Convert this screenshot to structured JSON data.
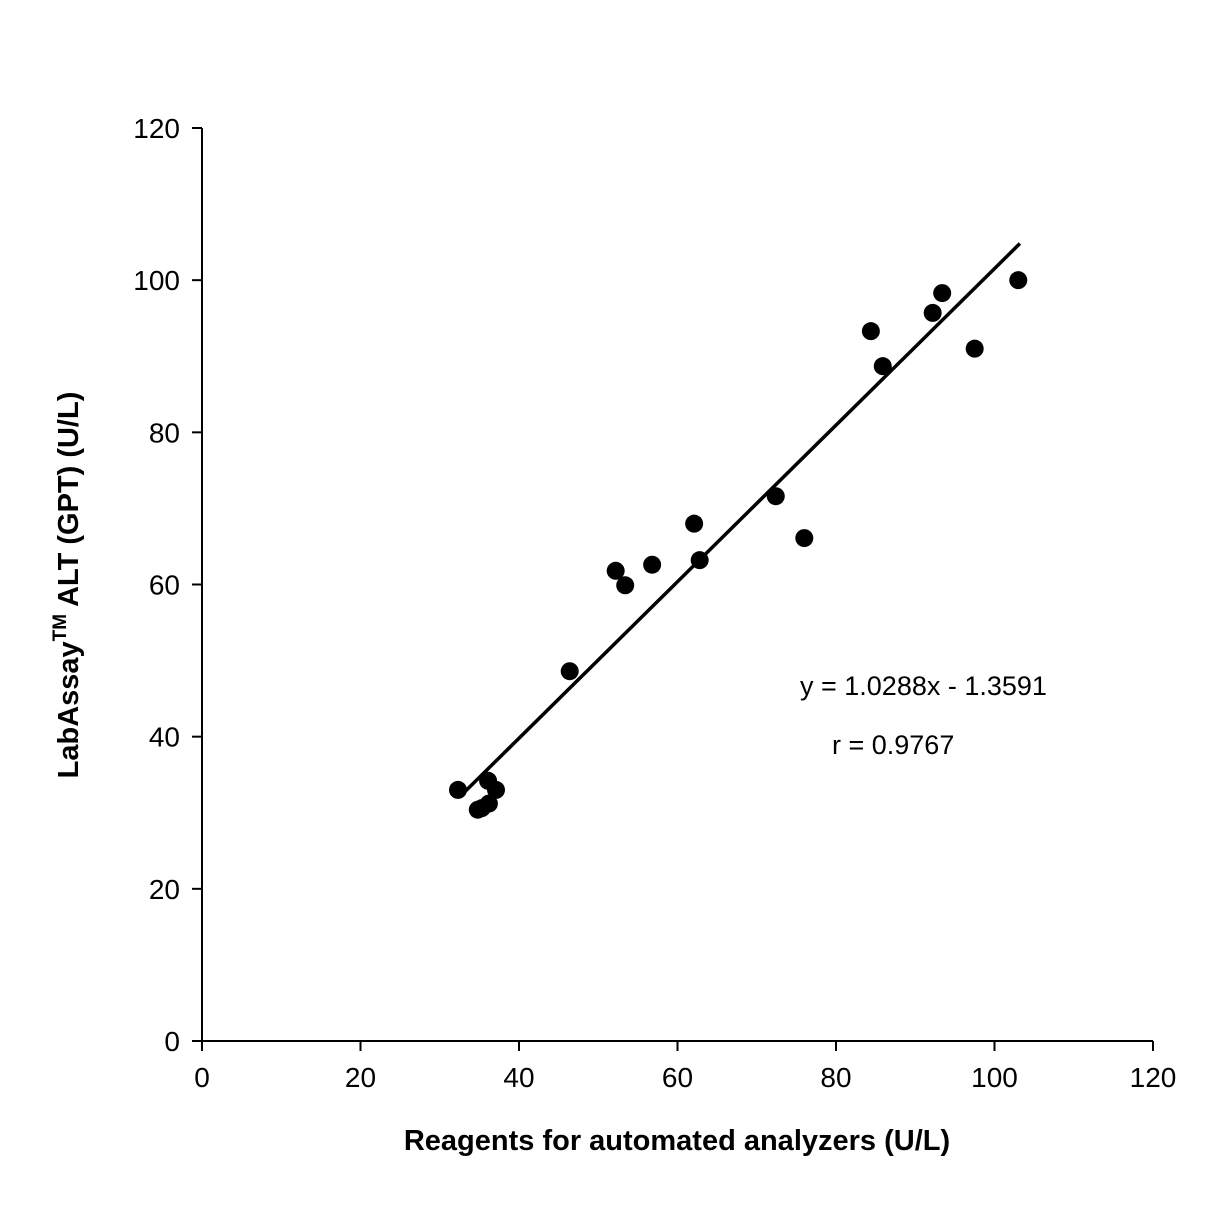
{
  "chart_data": {
    "type": "scatter",
    "title": "",
    "xlabel": "Reagents for automated analyzers (U/L)",
    "ylabel_main": "LabAssay",
    "ylabel_sup": "TM",
    "ylabel_rest": " ALT (GPT) (U/L)",
    "xlim": [
      0,
      120
    ],
    "ylim": [
      0,
      120
    ],
    "xticks": [
      0,
      20,
      40,
      60,
      80,
      100,
      120
    ],
    "yticks": [
      0,
      20,
      40,
      60,
      80,
      100,
      120
    ],
    "grid": false,
    "points": [
      {
        "x": 32.3,
        "y": 33.0
      },
      {
        "x": 34.8,
        "y": 30.4
      },
      {
        "x": 35.3,
        "y": 30.6
      },
      {
        "x": 36.2,
        "y": 31.2
      },
      {
        "x": 36.1,
        "y": 34.2
      },
      {
        "x": 37.1,
        "y": 33.0
      },
      {
        "x": 46.4,
        "y": 48.6
      },
      {
        "x": 52.2,
        "y": 61.8
      },
      {
        "x": 53.4,
        "y": 59.9
      },
      {
        "x": 56.8,
        "y": 62.6
      },
      {
        "x": 62.1,
        "y": 68.0
      },
      {
        "x": 62.8,
        "y": 63.2
      },
      {
        "x": 72.4,
        "y": 71.6
      },
      {
        "x": 76.0,
        "y": 66.1
      },
      {
        "x": 84.4,
        "y": 93.3
      },
      {
        "x": 85.9,
        "y": 88.7
      },
      {
        "x": 92.2,
        "y": 95.7
      },
      {
        "x": 93.4,
        "y": 98.3
      },
      {
        "x": 97.5,
        "y": 91.0
      },
      {
        "x": 103.0,
        "y": 100.0
      }
    ],
    "fit": {
      "slope": 1.0288,
      "intercept": -1.3591,
      "x_range": [
        33,
        103.2
      ]
    },
    "annotations": {
      "equation": "y = 1.0288x - 1.3591",
      "r": "r = 0.9767"
    }
  }
}
